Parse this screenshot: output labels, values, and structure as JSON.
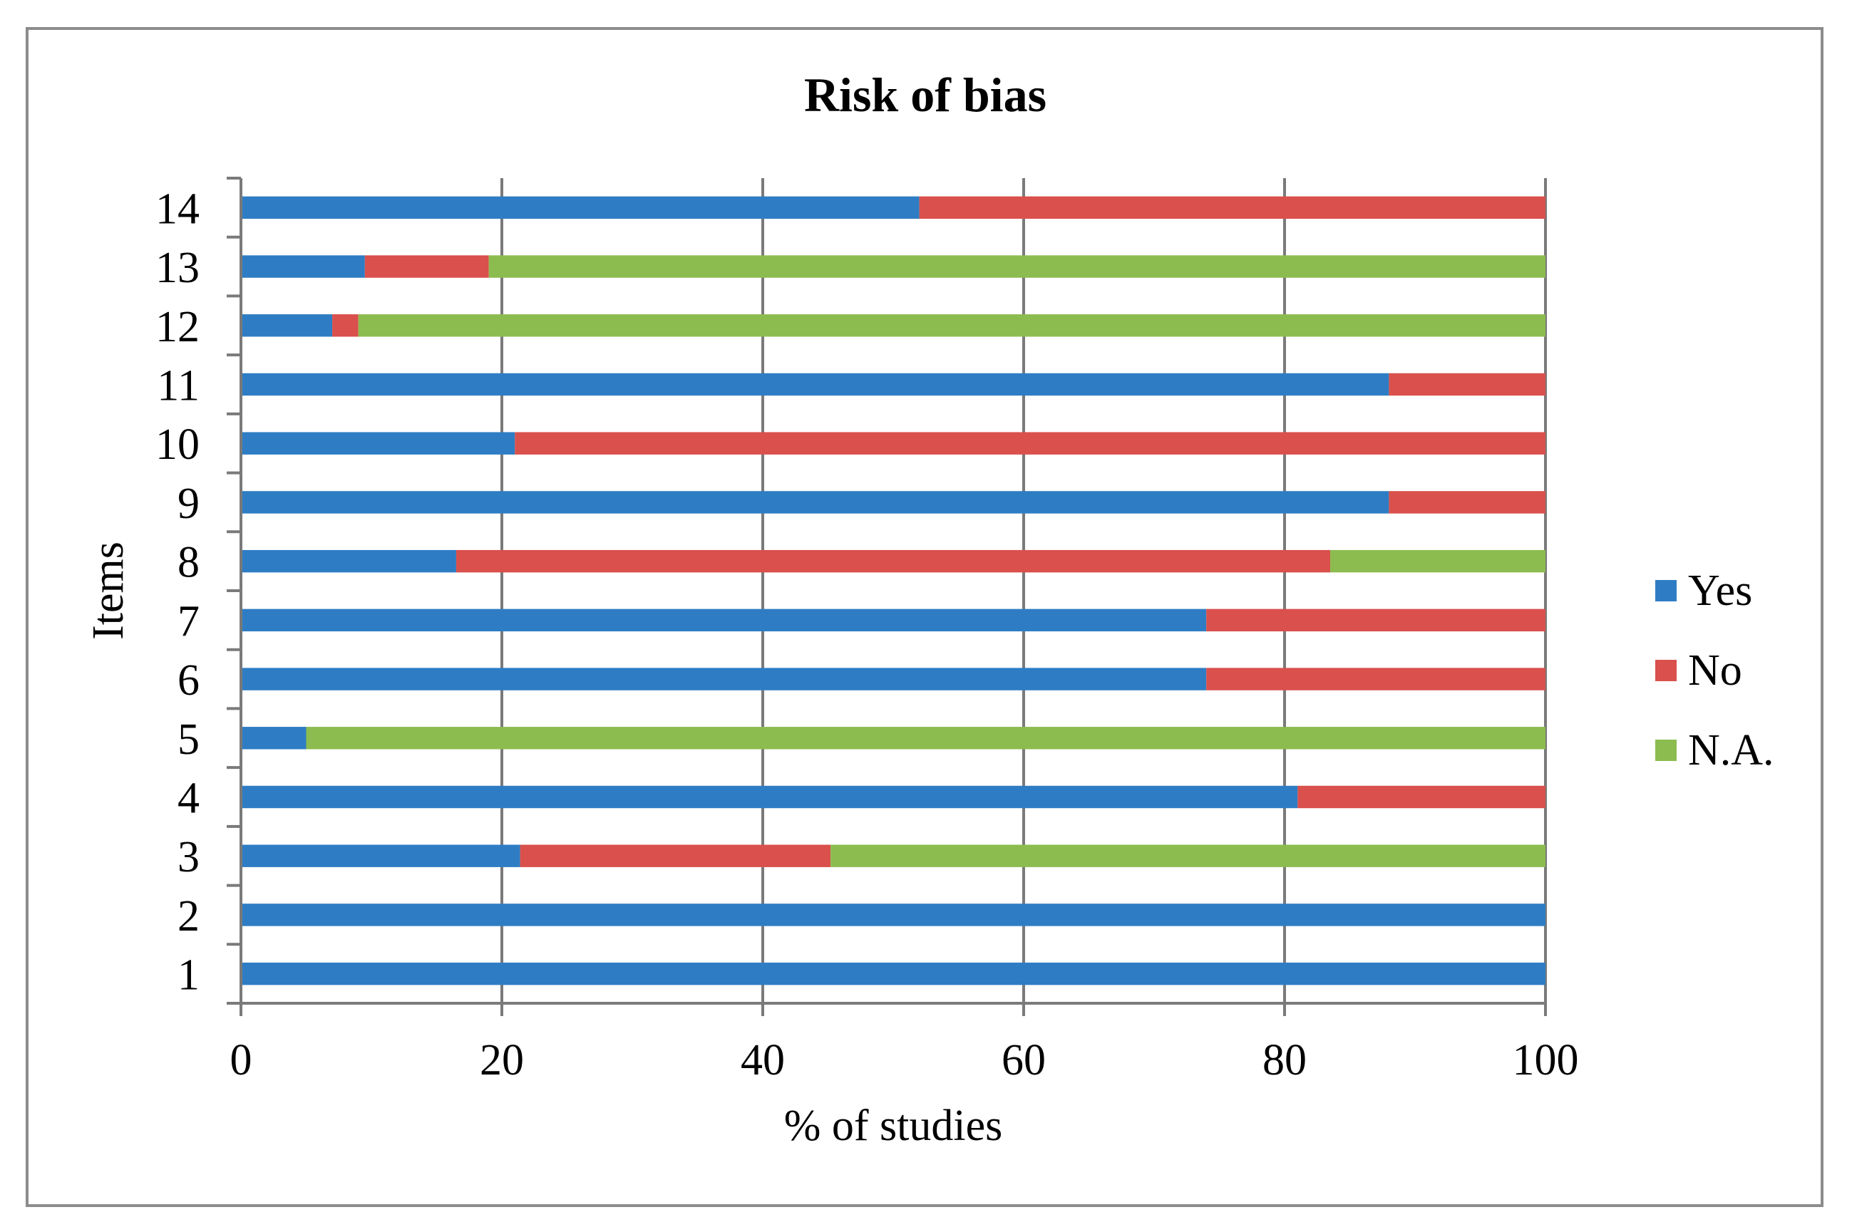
{
  "chart_data": {
    "type": "bar",
    "orientation": "horizontal",
    "stacked": true,
    "title": "Risk of bias",
    "xlabel": "% of studies",
    "ylabel": "Items",
    "xlim": [
      0,
      100
    ],
    "xticks": [
      0,
      20,
      40,
      60,
      80,
      100
    ],
    "grid": true,
    "legend_position": "right",
    "categories": [
      "1",
      "2",
      "3",
      "4",
      "5",
      "6",
      "7",
      "8",
      "9",
      "10",
      "11",
      "12",
      "13",
      "14"
    ],
    "series": [
      {
        "name": "Yes",
        "color": "#2e7dc4",
        "values": [
          100,
          100,
          21.4,
          81,
          5,
          74,
          74,
          16.5,
          88,
          21,
          88,
          7,
          9.5,
          52
        ]
      },
      {
        "name": "No",
        "color": "#d9504c",
        "values": [
          0,
          0,
          23.8,
          19,
          0,
          26,
          26,
          67,
          12,
          79,
          12,
          2,
          9.5,
          48
        ]
      },
      {
        "name": "N.A.",
        "color": "#8cbc4f",
        "values": [
          0,
          0,
          54.8,
          0,
          95,
          0,
          0,
          16.5,
          0,
          0,
          0,
          91,
          81,
          0
        ]
      }
    ]
  }
}
